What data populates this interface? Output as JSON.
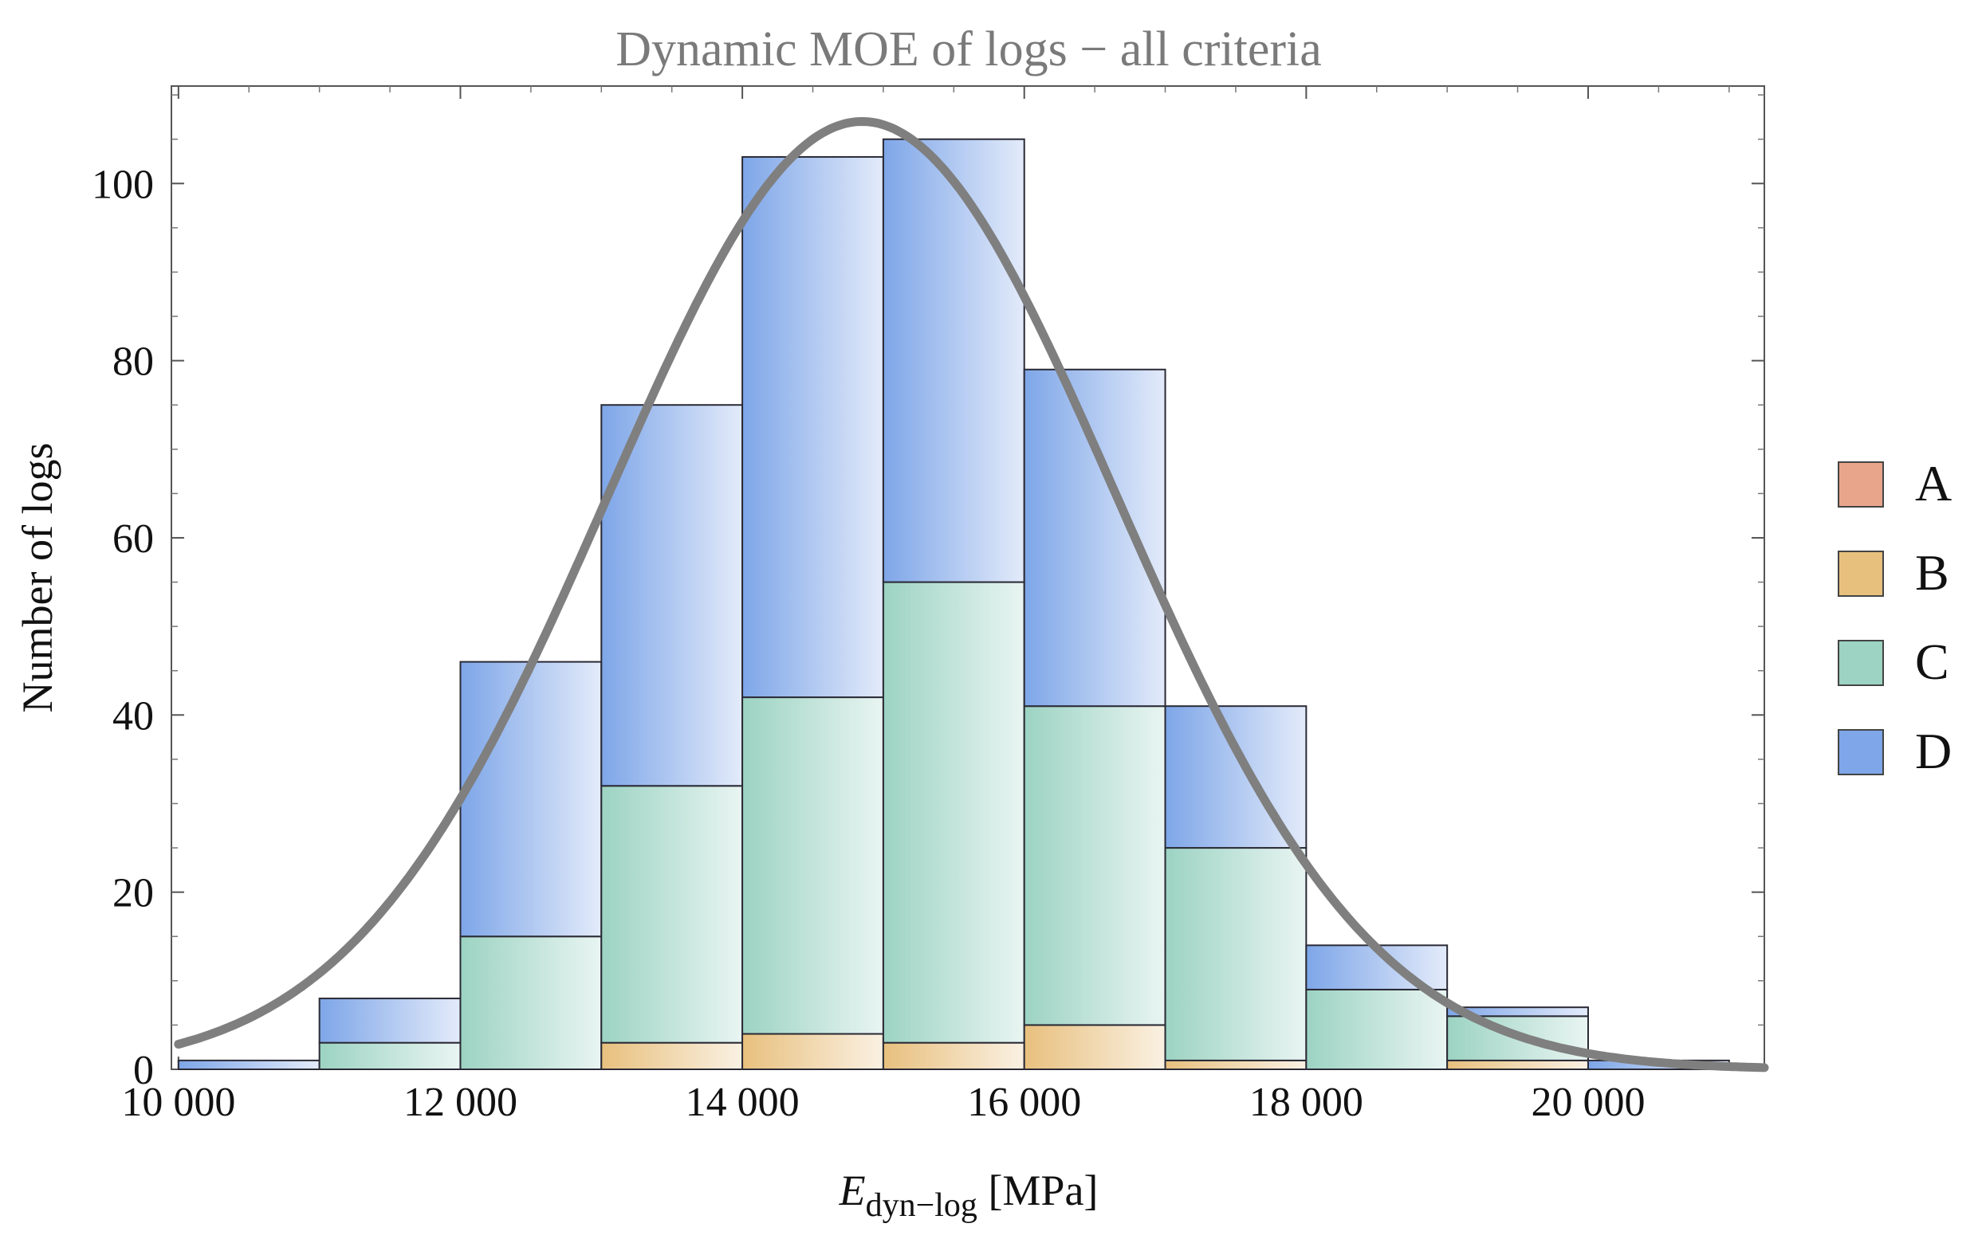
{
  "chart_data": {
    "type": "bar",
    "stacked": true,
    "title": "Dynamic MOE of logs − all criteria",
    "xlabel": {
      "main": "E",
      "subscript": "dyn−log",
      "unit": " [MPa]"
    },
    "ylabel": "Number of logs",
    "xlim": [
      9950,
      21250
    ],
    "ylim": [
      0,
      111
    ],
    "bin_edges": [
      10000,
      11000,
      12000,
      13000,
      14000,
      15000,
      16000,
      17000,
      18000,
      19000,
      20000,
      21000
    ],
    "x_ticks": [
      {
        "value": 10000,
        "label": "10 000"
      },
      {
        "value": 12000,
        "label": "12 000"
      },
      {
        "value": 14000,
        "label": "14 000"
      },
      {
        "value": 16000,
        "label": "16 000"
      },
      {
        "value": 18000,
        "label": "18 000"
      },
      {
        "value": 20000,
        "label": "20 000"
      }
    ],
    "y_ticks": [
      {
        "value": 0,
        "label": "0"
      },
      {
        "value": 20,
        "label": "20"
      },
      {
        "value": 40,
        "label": "40"
      },
      {
        "value": 60,
        "label": "60"
      },
      {
        "value": 80,
        "label": "80"
      },
      {
        "value": 100,
        "label": "100"
      }
    ],
    "series": [
      {
        "name": "A",
        "color": "#E8A58C",
        "values": [
          0,
          0,
          0,
          0,
          0,
          0,
          0,
          0,
          0,
          0,
          0
        ]
      },
      {
        "name": "B",
        "color": "#E8C07E",
        "values": [
          0,
          0,
          0,
          3,
          4,
          3,
          5,
          1,
          0,
          1,
          0
        ]
      },
      {
        "name": "C",
        "color": "#9CD3C2",
        "values": [
          0,
          3,
          15,
          29,
          38,
          52,
          36,
          24,
          9,
          5,
          0
        ]
      },
      {
        "name": "D",
        "color": "#7EA6E8",
        "values": [
          1,
          5,
          31,
          43,
          61,
          50,
          38,
          16,
          5,
          1,
          1
        ]
      }
    ],
    "fit_curve": {
      "type": "normal",
      "mean": 14850,
      "sd": 1800,
      "peak": 107,
      "color": "#7F7F7F"
    },
    "legend": {
      "position": "right",
      "entries": [
        "A",
        "B",
        "C",
        "D"
      ]
    }
  }
}
